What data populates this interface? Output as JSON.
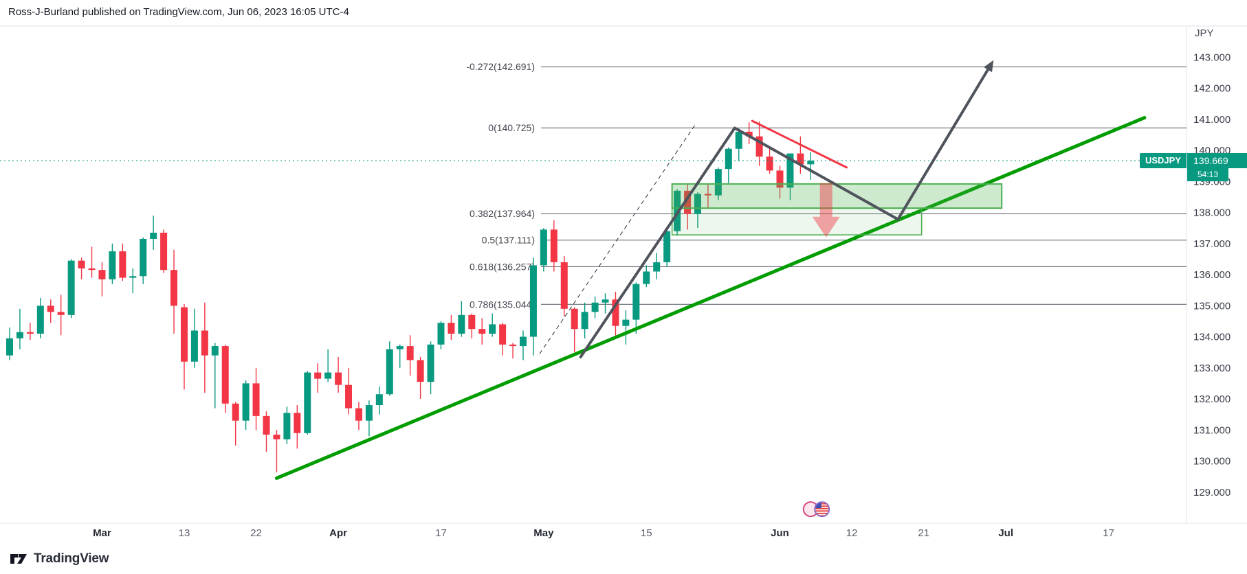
{
  "header": {
    "title": "Ross-J-Burland published on TradingView.com, Jun 06, 2023 16:05 UTC-4"
  },
  "footer": {
    "brand": "TradingView"
  },
  "price_label": {
    "symbol": "USDJPY",
    "price": "139.669",
    "countdown": "54:13",
    "color": "#089981"
  },
  "chart_data": {
    "type": "candlestick",
    "title": "USDJPY daily candlestick chart with Fibonacci levels and projection",
    "symbol": "USDJPY",
    "currency_label": "JPY",
    "last_price": 139.669,
    "up_color": "#089981",
    "down_color": "#f23645",
    "ylim": [
      128,
      144
    ],
    "price_ticks": [
      143,
      142,
      141,
      140,
      139,
      138,
      137,
      136,
      135,
      134,
      133,
      132,
      131,
      130,
      129
    ],
    "time_ticks": [
      {
        "label": "Mar",
        "index": 9,
        "major": true
      },
      {
        "label": "13",
        "index": 17,
        "major": false
      },
      {
        "label": "22",
        "index": 24,
        "major": false
      },
      {
        "label": "Apr",
        "index": 32,
        "major": true
      },
      {
        "label": "17",
        "index": 42,
        "major": false
      },
      {
        "label": "May",
        "index": 52,
        "major": true
      },
      {
        "label": "15",
        "index": 62,
        "major": false
      },
      {
        "label": "Jun",
        "index": 75,
        "major": true
      },
      {
        "label": "12",
        "index": 82,
        "major": false
      },
      {
        "label": "21",
        "index": 89,
        "major": false
      },
      {
        "label": "Jul",
        "index": 97,
        "major": true
      },
      {
        "label": "17",
        "index": 107,
        "major": false
      }
    ],
    "fib_levels": [
      {
        "label": "-0.272(142.691)",
        "price": 142.691
      },
      {
        "label": "0(140.725)",
        "price": 140.725
      },
      {
        "label": "0.382(137.964)",
        "price": 137.964
      },
      {
        "label": "0.5(137.111)",
        "price": 137.111
      },
      {
        "label": "0.618(136.257)",
        "price": 136.257
      },
      {
        "label": "0.786(135.044)",
        "price": 135.044
      }
    ],
    "candles": [
      [
        133.4,
        134.3,
        133.25,
        133.95
      ],
      [
        133.95,
        134.9,
        133.6,
        134.15
      ],
      [
        134.15,
        134.45,
        133.9,
        134.1
      ],
      [
        134.1,
        135.25,
        133.95,
        135.0
      ],
      [
        135.0,
        135.2,
        134.45,
        134.8
      ],
      [
        134.8,
        135.35,
        134.05,
        134.7
      ],
      [
        134.7,
        136.5,
        134.6,
        136.45
      ],
      [
        136.45,
        136.55,
        135.85,
        136.2
      ],
      [
        136.2,
        136.9,
        135.9,
        136.15
      ],
      [
        136.15,
        136.4,
        135.3,
        135.85
      ],
      [
        135.85,
        137.0,
        135.7,
        136.75
      ],
      [
        136.75,
        137.0,
        135.8,
        135.9
      ],
      [
        135.9,
        136.2,
        135.4,
        135.95
      ],
      [
        135.95,
        137.2,
        135.7,
        137.15
      ],
      [
        137.15,
        137.9,
        136.8,
        137.35
      ],
      [
        137.35,
        137.45,
        136.05,
        136.15
      ],
      [
        136.15,
        136.8,
        134.1,
        135.0
      ],
      [
        134.95,
        135.05,
        132.3,
        133.2
      ],
      [
        133.2,
        134.9,
        133.0,
        134.2
      ],
      [
        134.2,
        135.1,
        132.2,
        133.4
      ],
      [
        133.4,
        133.8,
        131.7,
        133.7
      ],
      [
        133.7,
        133.75,
        131.55,
        131.85
      ],
      [
        131.85,
        131.9,
        130.5,
        131.3
      ],
      [
        131.3,
        132.6,
        131.0,
        132.5
      ],
      [
        132.5,
        133.0,
        131.0,
        131.45
      ],
      [
        131.45,
        131.6,
        130.3,
        130.85
      ],
      [
        130.85,
        131.0,
        129.64,
        130.7
      ],
      [
        130.7,
        131.75,
        130.55,
        131.55
      ],
      [
        131.55,
        131.8,
        130.4,
        130.9
      ],
      [
        130.9,
        132.9,
        130.85,
        132.85
      ],
      [
        132.85,
        133.15,
        132.2,
        132.65
      ],
      [
        132.65,
        133.6,
        132.55,
        132.85
      ],
      [
        132.85,
        133.35,
        132.2,
        132.45
      ],
      [
        132.45,
        133.0,
        131.5,
        131.7
      ],
      [
        131.7,
        131.9,
        131.0,
        131.3
      ],
      [
        131.3,
        131.95,
        130.8,
        131.8
      ],
      [
        131.8,
        132.4,
        131.5,
        132.15
      ],
      [
        132.15,
        133.85,
        132.1,
        133.6
      ],
      [
        133.6,
        133.75,
        133.0,
        133.7
      ],
      [
        133.7,
        134.05,
        132.75,
        133.25
      ],
      [
        133.25,
        133.35,
        132.0,
        132.55
      ],
      [
        132.55,
        133.85,
        132.15,
        133.75
      ],
      [
        133.75,
        134.5,
        133.6,
        134.45
      ],
      [
        134.45,
        134.7,
        133.9,
        134.1
      ],
      [
        134.1,
        135.15,
        134.0,
        134.7
      ],
      [
        134.7,
        134.75,
        133.95,
        134.25
      ],
      [
        134.25,
        134.6,
        133.75,
        134.1
      ],
      [
        134.1,
        134.75,
        134.0,
        134.4
      ],
      [
        134.4,
        134.45,
        133.4,
        133.75
      ],
      [
        133.75,
        133.8,
        133.3,
        133.7
      ],
      [
        133.7,
        134.2,
        133.25,
        134.0
      ],
      [
        134.0,
        136.55,
        133.4,
        136.3
      ],
      [
        136.3,
        137.5,
        136.1,
        137.45
      ],
      [
        137.45,
        137.75,
        136.1,
        136.4
      ],
      [
        136.4,
        136.6,
        134.65,
        134.9
      ],
      [
        134.9,
        134.95,
        133.5,
        134.25
      ],
      [
        134.25,
        135.1,
        133.95,
        134.8
      ],
      [
        134.8,
        135.3,
        134.6,
        135.1
      ],
      [
        135.1,
        135.4,
        134.75,
        135.2
      ],
      [
        135.2,
        135.45,
        133.95,
        134.35
      ],
      [
        134.35,
        134.85,
        133.75,
        134.55
      ],
      [
        134.55,
        135.75,
        134.1,
        135.7
      ],
      [
        135.7,
        136.3,
        135.6,
        136.1
      ],
      [
        136.1,
        136.7,
        135.85,
        136.4
      ],
      [
        136.4,
        137.45,
        136.25,
        137.4
      ],
      [
        137.4,
        138.75,
        137.25,
        138.7
      ],
      [
        138.7,
        138.9,
        137.45,
        137.95
      ],
      [
        137.95,
        138.65,
        137.5,
        138.6
      ],
      [
        138.6,
        138.9,
        138.15,
        138.55
      ],
      [
        138.55,
        139.45,
        138.4,
        139.4
      ],
      [
        139.4,
        140.1,
        138.95,
        140.05
      ],
      [
        140.05,
        140.7,
        139.65,
        140.6
      ],
      [
        140.6,
        140.9,
        140.2,
        140.45
      ],
      [
        140.45,
        140.93,
        139.5,
        139.8
      ],
      [
        139.8,
        140.1,
        139.25,
        139.35
      ],
      [
        139.35,
        139.5,
        138.45,
        138.8
      ],
      [
        138.8,
        139.9,
        138.4,
        139.9
      ],
      [
        139.9,
        140.45,
        139.25,
        139.55
      ],
      [
        139.55,
        139.95,
        139.05,
        139.67
      ]
    ],
    "annotations": {
      "trendline": {
        "points": [
          [
            26,
            129.45
          ],
          [
            110.5,
            141.05
          ]
        ],
        "color": "#009c00",
        "width": 5
      },
      "dashed_trendline": {
        "points": [
          [
            51.6,
            133.45
          ],
          [
            66.7,
            140.8
          ]
        ],
        "color": "#2a2e39",
        "width": 1
      },
      "projection": {
        "points": [
          [
            55.6,
            133.35
          ],
          [
            70.6,
            140.72
          ],
          [
            86.5,
            137.78
          ],
          [
            95.8,
            142.9
          ]
        ],
        "color": "#4f545c",
        "width": 4
      },
      "resistance_line": {
        "points": [
          [
            72.3,
            140.95
          ],
          [
            81.5,
            139.45
          ]
        ],
        "color": "#f23645",
        "width": 3
      },
      "zones": [
        {
          "i0": 64.5,
          "i1": 96.6,
          "p0": 138.92,
          "p1": 138.14,
          "fill": "rgba(76,175,80,0.28)",
          "stroke": "#4caf50",
          "sw": 2
        },
        {
          "i0": 64.5,
          "i1": 88.8,
          "p0": 138.14,
          "p1": 137.28,
          "fill": "rgba(76,175,80,0.10)",
          "stroke": "#4caf50",
          "sw": 1.5
        }
      ],
      "down_arrow": {
        "index": 79.5,
        "top_price": 138.95,
        "bottom_price": 137.2,
        "color": "rgba(242,54,69,0.45)"
      },
      "event_icons": [
        {
          "kind": "generic",
          "index": 78.0,
          "price": 128.45
        },
        {
          "kind": "us-flag",
          "index": 79.1,
          "price": 128.45
        }
      ]
    }
  }
}
